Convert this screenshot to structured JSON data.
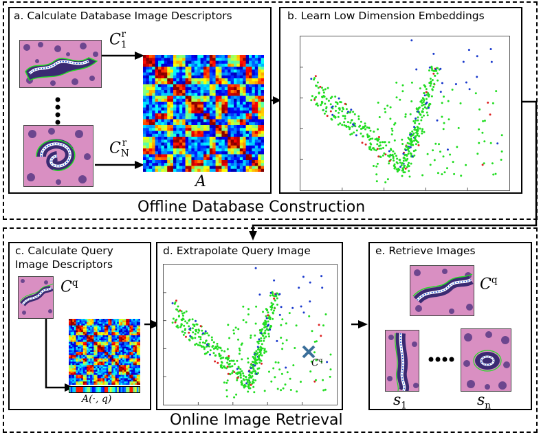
{
  "offline": {
    "label": "Offline Database Construction",
    "panel_a": {
      "title": "a. Calculate Database Image Descriptors",
      "descriptor_first": {
        "symbol": "C",
        "sub": "1",
        "sup": "r"
      },
      "descriptor_last": {
        "symbol": "C",
        "sub": "N",
        "sup": "r"
      },
      "matrix_label": "A"
    },
    "panel_b": {
      "title": "b. Learn Low Dimension Embeddings"
    }
  },
  "online": {
    "label": "Online Image Retrieval",
    "panel_c": {
      "title_line1": "c. Calculate Query",
      "title_line2": "Image Descriptors",
      "descriptor": {
        "symbol": "C",
        "sup": "q"
      },
      "vector_label": "A(·, q)"
    },
    "panel_d": {
      "title": "d. Extrapolate Query Image",
      "query_marker_label": {
        "symbol": "C",
        "sup": "q"
      }
    },
    "panel_e": {
      "title": "e. Retrieve Images",
      "descriptor": {
        "symbol": "C",
        "sup": "q"
      },
      "result_first": {
        "symbol": "s",
        "sub": "1"
      },
      "result_last": {
        "symbol": "s",
        "sub": "n"
      }
    }
  },
  "colors": {
    "points_majority": "#22dd22",
    "points_second": "#1a3acc",
    "points_third": "#dd2222",
    "query_marker": "#3b6f9a",
    "tissue_pink": "#d98fc2",
    "tissue_purple": "#5a3a86"
  },
  "icons": {
    "query-marker": "cross-icon",
    "arrows": "arrow-right-icon"
  }
}
